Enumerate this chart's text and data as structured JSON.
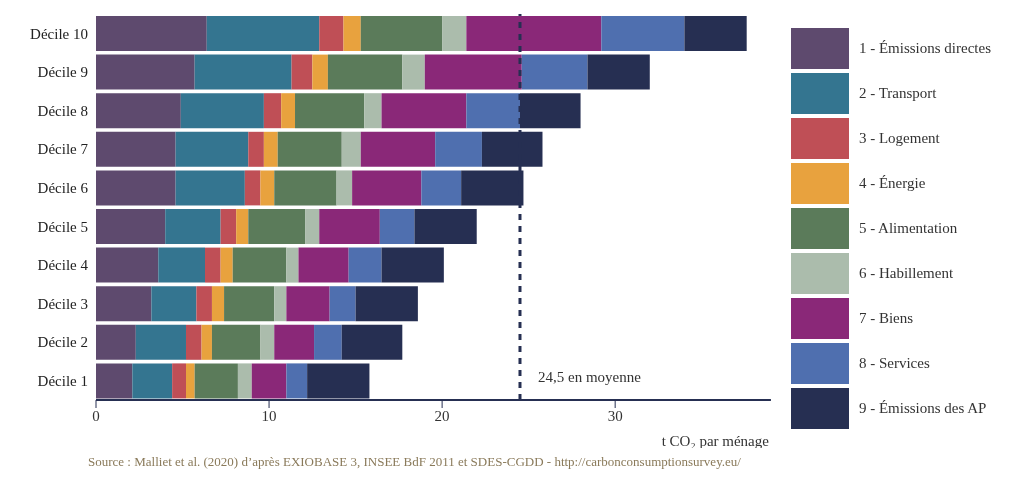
{
  "chart_data": {
    "type": "bar",
    "orientation": "horizontal",
    "stacked": true,
    "xlabel": "t CO₂ par ménage",
    "categories": [
      "Décile 10",
      "Décile 9",
      "Décile 8",
      "Décile 7",
      "Décile 6",
      "Décile 5",
      "Décile 4",
      "Décile 3",
      "Décile 2",
      "Décile 1"
    ],
    "series": [
      {
        "name": "1 - Émissions directes",
        "color": "#5e4a6e",
        "values": [
          6.4,
          5.7,
          4.9,
          4.6,
          4.6,
          4.0,
          3.6,
          3.2,
          2.3,
          2.1
        ]
      },
      {
        "name": "2 - Transport",
        "color": "#347590",
        "values": [
          6.5,
          5.6,
          4.8,
          4.2,
          4.0,
          3.2,
          2.7,
          2.6,
          2.9,
          2.3
        ]
      },
      {
        "name": "3 - Logement",
        "color": "#bf4f56",
        "values": [
          1.4,
          1.2,
          1.0,
          0.9,
          0.9,
          0.9,
          0.9,
          0.9,
          0.9,
          0.8
        ]
      },
      {
        "name": "4 - Énergie",
        "color": "#e8a23e",
        "values": [
          1.0,
          0.9,
          0.8,
          0.8,
          0.8,
          0.7,
          0.7,
          0.7,
          0.6,
          0.5
        ]
      },
      {
        "name": "5 - Alimentation",
        "color": "#5b7b5a",
        "values": [
          4.7,
          4.3,
          4.0,
          3.7,
          3.6,
          3.3,
          3.1,
          2.9,
          2.8,
          2.5
        ]
      },
      {
        "name": "6 - Habillement",
        "color": "#abbcac",
        "values": [
          1.4,
          1.3,
          1.0,
          1.1,
          0.9,
          0.8,
          0.7,
          0.7,
          0.8,
          0.8
        ]
      },
      {
        "name": "7 - Biens",
        "color": "#8a2878",
        "values": [
          7.8,
          5.6,
          4.9,
          4.3,
          4.0,
          3.5,
          2.9,
          2.5,
          2.3,
          2.0
        ]
      },
      {
        "name": "8 - Services",
        "color": "#4f6faf",
        "values": [
          4.8,
          3.8,
          3.1,
          2.7,
          2.3,
          2.0,
          1.9,
          1.5,
          1.6,
          1.2
        ]
      },
      {
        "name": "9 - Émissions des AP",
        "color": "#262f52",
        "values": [
          3.6,
          3.6,
          3.5,
          3.5,
          3.6,
          3.6,
          3.6,
          3.6,
          3.5,
          3.6
        ]
      }
    ],
    "xlim": [
      0,
      39
    ],
    "xticks": [
      0,
      10,
      20,
      30
    ],
    "ref_lines": [
      {
        "axis": "x",
        "value": 24.5,
        "label": "24,5 en moyenne",
        "color": "#262f52",
        "line_style": "dashed"
      }
    ],
    "legend": "right",
    "grid": false,
    "annotations": [
      "Source : Malliet et al. (2020) d’après EXIOBASE 3, INSEE BdF 2011 et SDES-CGDD - http://carbonconsumptionsurvey.eu/"
    ]
  }
}
